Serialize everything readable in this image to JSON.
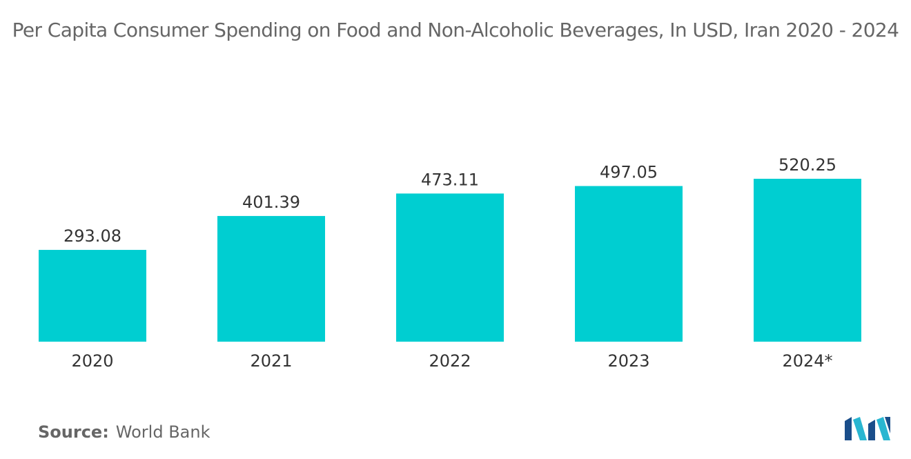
{
  "chart_data": {
    "type": "bar",
    "title": "Per Capita Consumer Spending on Food and Non-Alcoholic Beverages, In USD, Iran 2020 - 2024",
    "categories": [
      "2020",
      "2021",
      "2022",
      "2023",
      "2024*"
    ],
    "values": [
      293.08,
      401.39,
      473.11,
      497.05,
      520.25
    ],
    "value_labels": [
      "293.08",
      "401.39",
      "473.11",
      "497.05",
      "520.25"
    ],
    "xlabel": "",
    "ylabel": "",
    "ylim": [
      0,
      520.25
    ],
    "grid": false,
    "bar_color": "#00CED1"
  },
  "source": {
    "label": "Source:",
    "text": "World Bank"
  },
  "logo": {
    "icon": "mordor-intelligence-logo-icon",
    "colors": [
      "#1A4E8A",
      "#29B6D1"
    ]
  }
}
